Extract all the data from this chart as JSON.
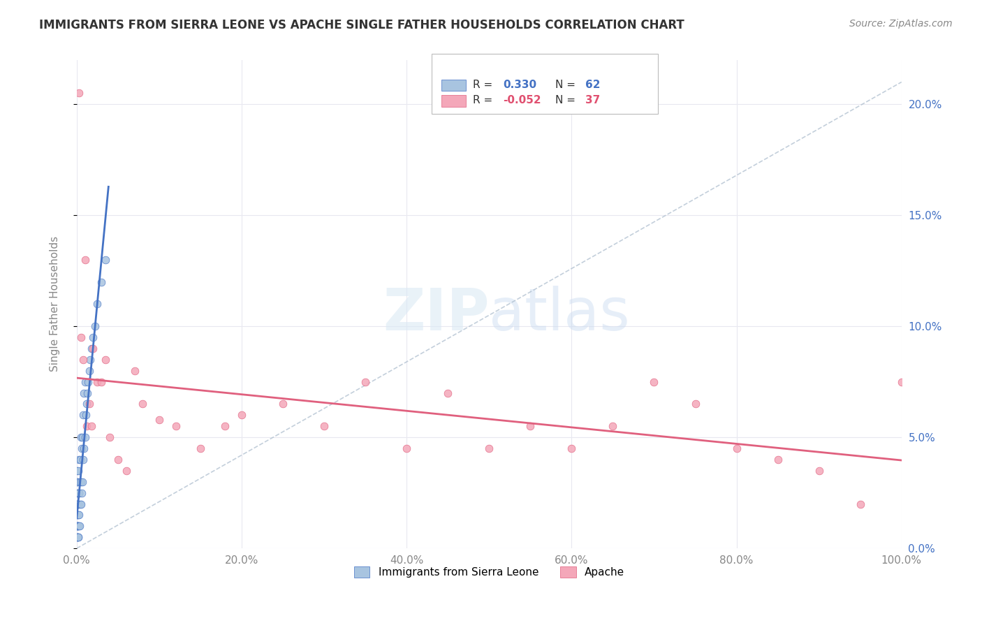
{
  "title": "IMMIGRANTS FROM SIERRA LEONE VS APACHE SINGLE FATHER HOUSEHOLDS CORRELATION CHART",
  "source": "Source: ZipAtlas.com",
  "ylabel": "Single Father Households",
  "legend_label_1": "Immigrants from Sierra Leone",
  "legend_label_2": "Apache",
  "r1": 0.33,
  "n1": 62,
  "r2": -0.052,
  "n2": 37,
  "color1": "#a8c4e0",
  "color1_line": "#4472c4",
  "color2": "#f4a7b9",
  "color2_line": "#e0607e",
  "color_r1": "#4472c4",
  "color_r2": "#e05070",
  "xlim": [
    0,
    100
  ],
  "ylim": [
    0,
    22
  ],
  "sierra_leone_x": [
    0.0,
    0.0,
    0.0,
    0.0,
    0.05,
    0.05,
    0.05,
    0.05,
    0.05,
    0.05,
    0.08,
    0.08,
    0.08,
    0.1,
    0.1,
    0.1,
    0.1,
    0.1,
    0.12,
    0.12,
    0.12,
    0.15,
    0.15,
    0.15,
    0.15,
    0.2,
    0.2,
    0.2,
    0.25,
    0.25,
    0.3,
    0.3,
    0.3,
    0.35,
    0.35,
    0.4,
    0.4,
    0.5,
    0.5,
    0.5,
    0.6,
    0.6,
    0.7,
    0.7,
    0.8,
    0.8,
    0.9,
    0.9,
    1.0,
    1.0,
    1.1,
    1.2,
    1.3,
    1.4,
    1.5,
    1.6,
    1.8,
    2.0,
    2.2,
    2.5,
    3.0,
    3.5
  ],
  "sierra_leone_y": [
    1.0,
    1.5,
    2.0,
    2.5,
    0.5,
    1.0,
    1.5,
    2.0,
    3.0,
    3.5,
    0.5,
    1.0,
    2.0,
    0.5,
    1.0,
    1.5,
    2.0,
    3.0,
    0.5,
    1.0,
    2.5,
    0.5,
    1.5,
    2.0,
    3.5,
    0.5,
    1.0,
    2.0,
    1.0,
    2.5,
    1.5,
    2.5,
    4.0,
    1.0,
    3.0,
    2.0,
    4.0,
    2.0,
    3.0,
    5.0,
    2.5,
    4.5,
    3.0,
    5.0,
    4.0,
    6.0,
    4.5,
    7.0,
    5.0,
    7.5,
    6.0,
    6.5,
    7.0,
    7.5,
    8.0,
    8.5,
    9.0,
    9.5,
    10.0,
    11.0,
    12.0,
    13.0
  ],
  "apache_x": [
    0.3,
    0.5,
    0.8,
    1.0,
    1.2,
    1.5,
    1.8,
    2.0,
    2.5,
    3.0,
    3.5,
    4.0,
    5.0,
    6.0,
    7.0,
    8.0,
    10.0,
    12.0,
    15.0,
    18.0,
    20.0,
    25.0,
    30.0,
    35.0,
    40.0,
    45.0,
    50.0,
    55.0,
    60.0,
    65.0,
    70.0,
    75.0,
    80.0,
    85.0,
    90.0,
    95.0,
    100.0
  ],
  "apache_y": [
    20.5,
    9.5,
    8.5,
    13.0,
    5.5,
    6.5,
    5.5,
    9.0,
    7.5,
    7.5,
    8.5,
    5.0,
    4.0,
    3.5,
    8.0,
    6.5,
    5.8,
    5.5,
    4.5,
    5.5,
    6.0,
    6.5,
    5.5,
    7.5,
    4.5,
    7.0,
    4.5,
    5.5,
    4.5,
    5.5,
    7.5,
    6.5,
    4.5,
    4.0,
    3.5,
    2.0,
    7.5
  ],
  "bg_color": "#ffffff",
  "grid_color": "#e8e8f0",
  "tick_color_right": "#4472c4"
}
